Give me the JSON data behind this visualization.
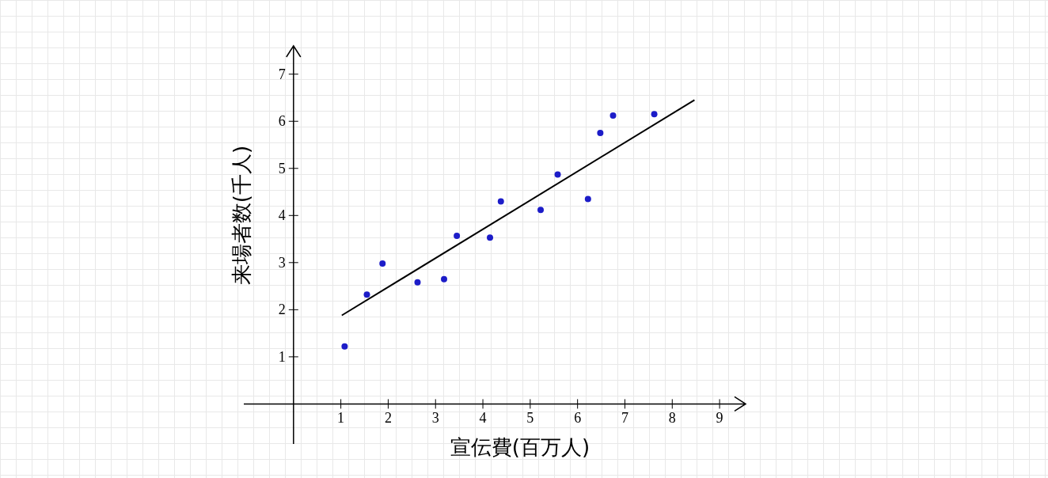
{
  "chart_data": {
    "type": "scatter",
    "xlabel": "宣伝費(百万人)",
    "ylabel": "来場者数(千人)",
    "xlim": [
      -1.05,
      9.55
    ],
    "ylim": [
      -0.85,
      7.6
    ],
    "xticks": [
      1,
      2,
      3,
      4,
      5,
      6,
      7,
      8,
      9
    ],
    "yticks": [
      1,
      2,
      3,
      4,
      5,
      6,
      7
    ],
    "grid": false,
    "legend": false,
    "series": [
      {
        "color": "#1c1cc8",
        "marker": "circle",
        "x": [
          1.08,
          1.55,
          1.88,
          2.62,
          3.18,
          3.45,
          4.15,
          4.38,
          5.22,
          5.58,
          6.22,
          6.48,
          6.75,
          7.62
        ],
        "values": [
          1.22,
          2.32,
          2.98,
          2.58,
          2.65,
          3.57,
          3.53,
          4.3,
          4.12,
          4.87,
          4.35,
          5.75,
          6.12,
          6.15
        ]
      },
      {
        "type": "line",
        "color": "#000000",
        "marker": "none",
        "x": [
          1.02,
          8.47
        ],
        "values": [
          1.88,
          6.45
        ]
      }
    ]
  }
}
